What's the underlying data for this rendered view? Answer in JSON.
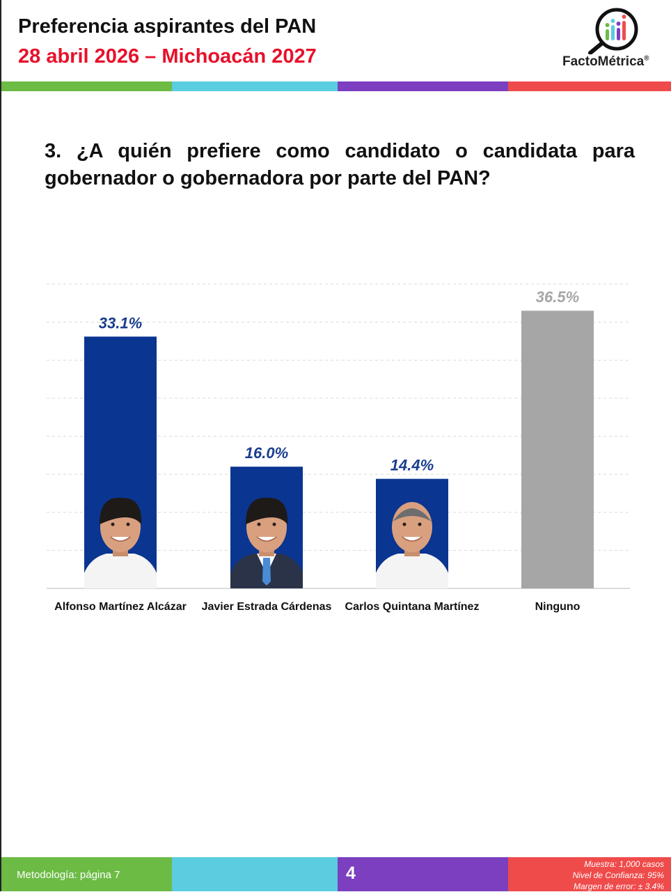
{
  "header": {
    "title": "Preferencia aspirantes del PAN",
    "subtitle": "28 abril 2026 – Michoacán 2027",
    "logo_text": "FactoMétrica",
    "logo_reg": "®"
  },
  "stripe_colors": [
    "#6cbb45",
    "#5bcde0",
    "#7b3fbf",
    "#ef4b4b"
  ],
  "question": "3. ¿A quién prefiere como candidato o candidata para gobernador o gobernadora por parte del PAN?",
  "chart_data": {
    "type": "bar",
    "categories": [
      "Alfonso Martínez Alcázar",
      "Javier Estrada Cárdenas",
      "Carlos Quintana Martínez",
      "Ninguno"
    ],
    "values": [
      33.1,
      16.0,
      14.4,
      36.5
    ],
    "value_labels": [
      "33.1%",
      "16.0%",
      "14.4%",
      "36.5%"
    ],
    "colors": [
      "#0a3591",
      "#0a3591",
      "#0a3591",
      "#a6a6a6"
    ],
    "label_colors": [
      "#1a3d8f",
      "#1a3d8f",
      "#1a3d8f",
      "#a6a6a6"
    ],
    "ylim": [
      0,
      40
    ],
    "grid": true,
    "photos": [
      "person-photo",
      "person-photo",
      "person-photo",
      null
    ]
  },
  "footer": {
    "methodology": "Metodología: página 7",
    "page_number": "4",
    "sample": "Muestra:  1,000 casos",
    "confidence": "Nivel de Confianza: 95%",
    "margin": "Margen de error: ± 3.4%"
  }
}
